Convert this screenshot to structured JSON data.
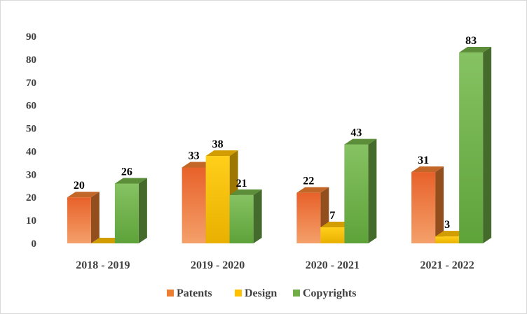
{
  "chart_data": {
    "type": "bar",
    "style": "3d-clustered-column",
    "title": "",
    "xlabel": "",
    "ylabel": "",
    "ylim": [
      0,
      90
    ],
    "yticks": [
      0,
      10,
      20,
      30,
      40,
      50,
      60,
      70,
      80,
      90
    ],
    "grid": false,
    "legend_position": "bottom",
    "categories": [
      "2018 - 2019",
      "2019 - 2020",
      "2020 - 2021",
      "2021 - 2022"
    ],
    "series": [
      {
        "name": "Patents",
        "values": [
          20,
          33,
          22,
          31
        ],
        "labels": [
          "20",
          "33",
          "22",
          "31"
        ],
        "color": "#ed7d31"
      },
      {
        "name": "Design",
        "values": [
          0,
          38,
          7,
          3
        ],
        "labels": [
          "",
          "38",
          "7",
          "3"
        ],
        "color": "#ffc000"
      },
      {
        "name": "Copyrights",
        "values": [
          26,
          21,
          43,
          83
        ],
        "labels": [
          "26",
          "21",
          "43",
          "83"
        ],
        "color": "#70ad47"
      }
    ]
  }
}
